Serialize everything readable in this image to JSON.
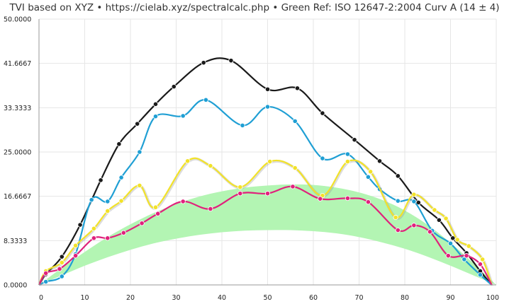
{
  "title": "TVI based on XYZ  •  https://cielab.xyz/spectralcalc.php  •  Green Ref: ISO 12647-2:2004 Curv A (14 ± 4)",
  "chart_data": {
    "type": "line",
    "title": "TVI based on XYZ  •  https://cielab.xyz/spectralcalc.php  •  Green Ref: ISO 12647-2:2004 Curv A (14 ± 4)",
    "xlabel": "",
    "ylabel": "",
    "xlim": [
      0,
      100
    ],
    "ylim": [
      0,
      50
    ],
    "grid": true,
    "x_ticks": [
      "0",
      "10",
      "20",
      "30",
      "40",
      "50",
      "60",
      "70",
      "80",
      "90",
      "100"
    ],
    "y_ticks": [
      "0.0000",
      "8.3333",
      "16.6667",
      "25.0000",
      "33.3333",
      "41.6667",
      "50.0000"
    ],
    "reference_band": {
      "color": "#b3f5b3",
      "x": [
        0,
        5,
        10,
        15,
        20,
        25,
        30,
        35,
        40,
        45,
        50,
        55,
        60,
        65,
        70,
        75,
        80,
        85,
        90,
        95,
        100
      ],
      "lower": [
        0,
        1.8,
        3.6,
        5.2,
        6.6,
        7.8,
        8.7,
        9.4,
        9.9,
        10.2,
        10.3,
        10.3,
        10.1,
        9.7,
        9.0,
        8.0,
        6.8,
        5.3,
        3.6,
        1.8,
        0
      ],
      "upper": [
        0,
        3.2,
        6.2,
        9.0,
        11.4,
        13.5,
        15.2,
        16.6,
        17.6,
        18.3,
        18.7,
        18.9,
        18.8,
        18.3,
        17.4,
        16.0,
        14.0,
        11.3,
        7.9,
        4.1,
        0
      ]
    },
    "series": [
      {
        "color": "#1a1a1a",
        "x": [
          0,
          1.5,
          5,
          9,
          13.5,
          17.5,
          21.5,
          25.5,
          29.5,
          36,
          42,
          50,
          56.5,
          62,
          69,
          74.5,
          78.5,
          83,
          87.5,
          90.5,
          93.5,
          96.5,
          99
        ],
        "values": [
          0,
          2,
          5.3,
          11.3,
          19.7,
          26.5,
          30.3,
          34,
          37.3,
          41.8,
          42.2,
          36.8,
          37,
          32.3,
          27.3,
          23.3,
          20.5,
          15.5,
          12.2,
          8.8,
          6.0,
          2.6,
          0
        ]
      },
      {
        "color": "#1f9fd4",
        "x": [
          0,
          1.5,
          5,
          8,
          11.5,
          15,
          18,
          22,
          25.5,
          31.5,
          36.5,
          44.5,
          50,
          56,
          62,
          67.5,
          72,
          74.5,
          78.5,
          82,
          86,
          90,
          93,
          96.5,
          99
        ],
        "values": [
          0,
          0.6,
          1.6,
          5.8,
          16,
          15.7,
          20.2,
          25,
          31.7,
          31.8,
          34.8,
          30,
          33.5,
          30.8,
          23.8,
          24.6,
          20.3,
          18,
          15.8,
          15.7,
          10.2,
          7.8,
          4.8,
          1.9,
          0
        ]
      },
      {
        "color": "#f2e22a",
        "x": [
          0,
          1.5,
          5,
          8,
          12,
          15,
          18,
          22,
          25.5,
          32.5,
          37.5,
          44,
          50.5,
          56,
          62,
          67.5,
          72.5,
          78,
          82,
          86.5,
          89,
          91.5,
          94,
          97,
          99
        ],
        "values": [
          0,
          2.6,
          4.2,
          7.4,
          10.6,
          13.9,
          15.8,
          18.7,
          14.6,
          23.3,
          22.4,
          18.4,
          23.2,
          22,
          16.8,
          23.2,
          21.3,
          12.7,
          17,
          14.1,
          12.5,
          8.5,
          7.3,
          4.8,
          0
        ]
      },
      {
        "color": "#e0227c",
        "x": [
          0,
          1.5,
          4.5,
          8,
          12,
          15,
          18.5,
          22.5,
          26,
          31.5,
          37.5,
          44,
          50,
          55.5,
          61.5,
          67.5,
          72,
          78.5,
          82,
          85.5,
          89.5,
          93.5,
          96.5,
          99
        ],
        "values": [
          0,
          2.2,
          3,
          5.5,
          8.8,
          8.8,
          9.8,
          11.6,
          13.4,
          15.7,
          14.3,
          17.2,
          17.2,
          18.5,
          16.2,
          16.3,
          15.6,
          10.3,
          11.2,
          10,
          5.5,
          5.5,
          3.9,
          0
        ]
      }
    ]
  }
}
